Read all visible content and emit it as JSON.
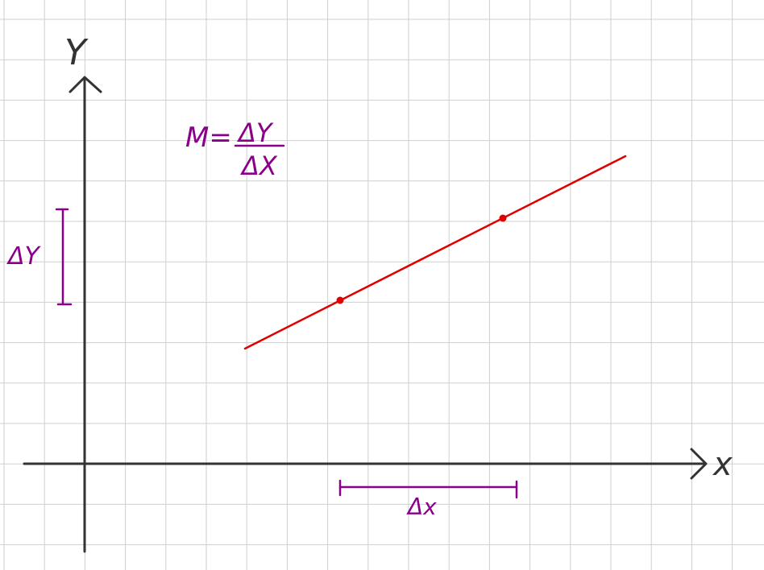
{
  "axes": {
    "y_label": "Y",
    "x_label": "x"
  },
  "formula": {
    "lhs": "M=",
    "numerator": "ΔY",
    "denominator": "ΔX"
  },
  "delta_y_label": "ΔY",
  "delta_x_label": "Δx",
  "colors": {
    "grid": "#cfcfcf",
    "axis": "#333333",
    "line": "#e00000",
    "annotation": "#8b008b"
  },
  "icons": {
    "x_arrow": "arrowhead-right-icon",
    "y_arrow": "arrowhead-up-icon",
    "point": "dot-icon"
  }
}
